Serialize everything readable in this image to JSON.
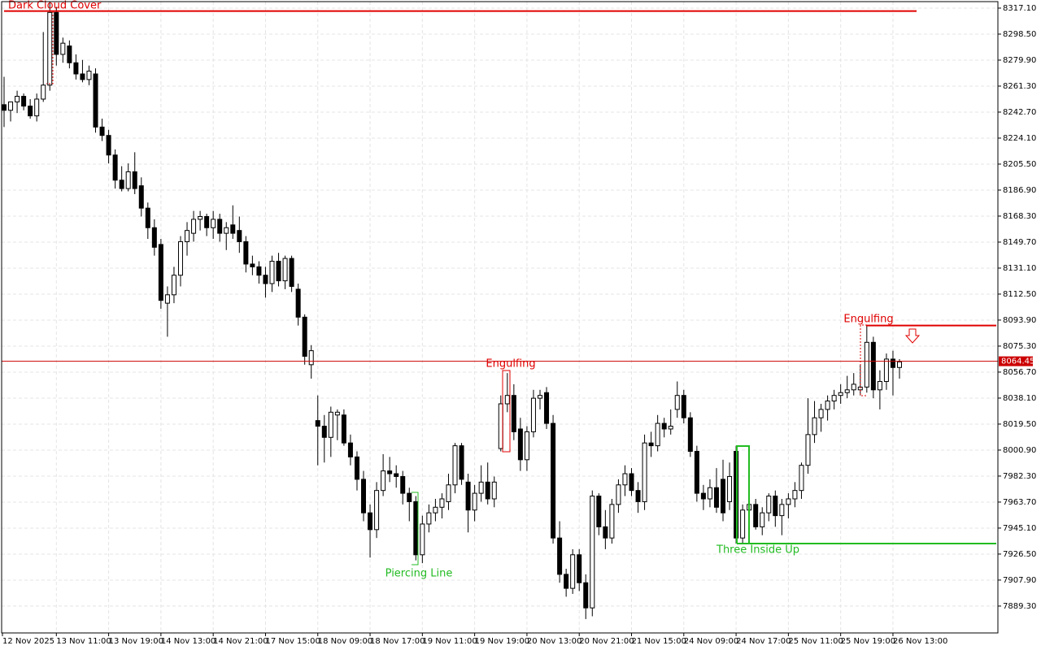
{
  "chart_data": {
    "type": "candlestick",
    "up_color": "#ffffff",
    "down_color": "#000000",
    "outline_color": "#000000",
    "grid": true,
    "ylim": [
      7869.5,
      8322.9
    ],
    "yticks": [
      {
        "value": 8317.1,
        "label": "8317.10"
      },
      {
        "value": 8298.5,
        "label": "8298.50"
      },
      {
        "value": 8279.9,
        "label": "8279.90"
      },
      {
        "value": 8261.3,
        "label": "8261.30"
      },
      {
        "value": 8242.7,
        "label": "8242.70"
      },
      {
        "value": 8224.1,
        "label": "8224.10"
      },
      {
        "value": 8205.5,
        "label": "8205.50"
      },
      {
        "value": 8186.9,
        "label": "8186.90"
      },
      {
        "value": 8168.3,
        "label": "8168.30"
      },
      {
        "value": 8149.7,
        "label": "8149.70"
      },
      {
        "value": 8131.1,
        "label": "8131.10"
      },
      {
        "value": 8112.5,
        "label": "8112.50"
      },
      {
        "value": 8093.9,
        "label": "8093.90"
      },
      {
        "value": 8075.3,
        "label": "8075.30"
      },
      {
        "value": 8056.7,
        "label": "8056.70"
      },
      {
        "value": 8038.1,
        "label": "8038.10"
      },
      {
        "value": 8019.5,
        "label": "8019.50"
      },
      {
        "value": 8000.9,
        "label": "8000.90"
      },
      {
        "value": 7982.3,
        "label": "7982.30"
      },
      {
        "value": 7963.7,
        "label": "7963.70"
      },
      {
        "value": 7945.1,
        "label": "7945.10"
      },
      {
        "value": 7926.5,
        "label": "7926.50"
      },
      {
        "value": 7907.9,
        "label": "7907.90"
      },
      {
        "value": 7889.3,
        "label": "7889.30"
      }
    ],
    "time_labels": [
      "12 Nov 2025",
      "13 Nov 11:00",
      "13 Nov 19:00",
      "14 Nov 13:00",
      "14 Nov 21:00",
      "17 Nov 15:00",
      "18 Nov 09:00",
      "18 Nov 17:00",
      "19 Nov 11:00",
      "19 Nov 19:00",
      "20 Nov 13:00",
      "20 Nov 21:00",
      "21 Nov 15:00",
      "24 Nov 09:00",
      "24 Nov 17:00",
      "25 Nov 11:00",
      "25 Nov 19:00",
      "26 Nov 13:00"
    ],
    "current_price": {
      "value": 8064.45,
      "label": "8064.45",
      "color": "#cc0000"
    },
    "patterns": [
      {
        "label": "Dark Cloud Cover",
        "color": "#e00000",
        "level": 8315
      },
      {
        "label": "Engulfing",
        "color": "#e00000"
      },
      {
        "label": "Piercing Line",
        "color": "#22bb22"
      },
      {
        "label": "Engulfing",
        "color": "#e00000",
        "level": 8090
      },
      {
        "label": "Three Inside Up",
        "color": "#22bb22",
        "level": 7934
      }
    ],
    "candles": [
      [
        8248,
        8268,
        8232,
        8244
      ],
      [
        8244,
        8250,
        8236,
        8250
      ],
      [
        8250,
        8258,
        8242,
        8254
      ],
      [
        8254,
        8256,
        8244,
        8247
      ],
      [
        8247,
        8252,
        8238,
        8240
      ],
      [
        8240,
        8256,
        8236,
        8252
      ],
      [
        8252,
        8300,
        8250,
        8262
      ],
      [
        8262,
        8322,
        8258,
        8314
      ],
      [
        8314,
        8318,
        8276,
        8284
      ],
      [
        8284,
        8296,
        8278,
        8292
      ],
      [
        8290,
        8294,
        8274,
        8278
      ],
      [
        8278,
        8284,
        8266,
        8270
      ],
      [
        8270,
        8280,
        8264,
        8266
      ],
      [
        8266,
        8276,
        8262,
        8272
      ],
      [
        8270,
        8274,
        8228,
        8232
      ],
      [
        8232,
        8238,
        8222,
        8226
      ],
      [
        8226,
        8230,
        8206,
        8212
      ],
      [
        8212,
        8216,
        8188,
        8194
      ],
      [
        8194,
        8204,
        8186,
        8188
      ],
      [
        8188,
        8206,
        8186,
        8200
      ],
      [
        8200,
        8214,
        8184,
        8188
      ],
      [
        8190,
        8196,
        8168,
        8174
      ],
      [
        8174,
        8178,
        8152,
        8160
      ],
      [
        8160,
        8166,
        8140,
        8146
      ],
      [
        8148,
        8152,
        8102,
        8108
      ],
      [
        8106,
        8118,
        8082,
        8112
      ],
      [
        8112,
        8132,
        8106,
        8126
      ],
      [
        8126,
        8154,
        8118,
        8150
      ],
      [
        8150,
        8164,
        8140,
        8158
      ],
      [
        8156,
        8172,
        8150,
        8166
      ],
      [
        8166,
        8172,
        8158,
        8168
      ],
      [
        8168,
        8170,
        8154,
        8160
      ],
      [
        8160,
        8172,
        8152,
        8166
      ],
      [
        8166,
        8170,
        8150,
        8156
      ],
      [
        8156,
        8164,
        8144,
        8160
      ],
      [
        8162,
        8176,
        8152,
        8156
      ],
      [
        8158,
        8168,
        8142,
        8150
      ],
      [
        8150,
        8154,
        8128,
        8134
      ],
      [
        8134,
        8140,
        8126,
        8132
      ],
      [
        8132,
        8136,
        8120,
        8126
      ],
      [
        8126,
        8132,
        8110,
        8120
      ],
      [
        8120,
        8140,
        8114,
        8136
      ],
      [
        8136,
        8142,
        8118,
        8122
      ],
      [
        8122,
        8140,
        8116,
        8138
      ],
      [
        8138,
        8140,
        8114,
        8118
      ],
      [
        8116,
        8120,
        8090,
        8096
      ],
      [
        8096,
        8098,
        8062,
        8068
      ],
      [
        8062,
        8076,
        8052,
        8072
      ],
      [
        8022,
        8040,
        7990,
        8018
      ],
      [
        8018,
        8026,
        7992,
        8010
      ],
      [
        8010,
        8032,
        7996,
        8028
      ],
      [
        8026,
        8030,
        8008,
        8028
      ],
      [
        8026,
        8030,
        8004,
        8006
      ],
      [
        8006,
        8012,
        7990,
        7996
      ],
      [
        7996,
        8000,
        7972,
        7980
      ],
      [
        7980,
        7986,
        7950,
        7956
      ],
      [
        7956,
        7962,
        7924,
        7944
      ],
      [
        7944,
        7978,
        7938,
        7972
      ],
      [
        7972,
        7998,
        7968,
        7986
      ],
      [
        7986,
        7996,
        7978,
        7984
      ],
      [
        7984,
        7990,
        7974,
        7982
      ],
      [
        7982,
        7986,
        7962,
        7970
      ],
      [
        7970,
        7974,
        7950,
        7964
      ],
      [
        7964,
        7968,
        7922,
        7926
      ],
      [
        7926,
        7954,
        7920,
        7948
      ],
      [
        7948,
        7962,
        7942,
        7956
      ],
      [
        7956,
        7966,
        7950,
        7960
      ],
      [
        7960,
        7970,
        7952,
        7966
      ],
      [
        7964,
        7984,
        7958,
        7976
      ],
      [
        7976,
        8006,
        7970,
        8004
      ],
      [
        8004,
        8006,
        7976,
        7980
      ],
      [
        7978,
        7984,
        7942,
        7958
      ],
      [
        7958,
        7976,
        7950,
        7970
      ],
      [
        7970,
        7990,
        7964,
        7978
      ],
      [
        7978,
        7992,
        7962,
        7966
      ],
      [
        7966,
        7982,
        7960,
        7978
      ],
      [
        8002,
        8040,
        8000,
        8034
      ],
      [
        8034,
        8056,
        8028,
        8040
      ],
      [
        8040,
        8048,
        8008,
        8014
      ],
      [
        8016,
        8024,
        7986,
        7994
      ],
      [
        7994,
        8018,
        7986,
        8014
      ],
      [
        8014,
        8044,
        8010,
        8038
      ],
      [
        8038,
        8044,
        8030,
        8040
      ],
      [
        8042,
        8046,
        8016,
        8020
      ],
      [
        8020,
        8026,
        7934,
        7938
      ],
      [
        7938,
        7950,
        7906,
        7912
      ],
      [
        7912,
        7916,
        7896,
        7902
      ],
      [
        7902,
        7930,
        7898,
        7926
      ],
      [
        7926,
        7930,
        7900,
        7906
      ],
      [
        7906,
        7912,
        7880,
        7888
      ],
      [
        7888,
        7972,
        7882,
        7968
      ],
      [
        7968,
        7970,
        7940,
        7946
      ],
      [
        7946,
        7958,
        7930,
        7938
      ],
      [
        7938,
        7966,
        7934,
        7962
      ],
      [
        7962,
        7980,
        7956,
        7976
      ],
      [
        7976,
        7990,
        7968,
        7984
      ],
      [
        7984,
        7988,
        7968,
        7972
      ],
      [
        7972,
        7978,
        7956,
        7964
      ],
      [
        7964,
        8012,
        7958,
        8006
      ],
      [
        8006,
        8014,
        7996,
        8004
      ],
      [
        8004,
        8026,
        8000,
        8020
      ],
      [
        8020,
        8024,
        8010,
        8016
      ],
      [
        8016,
        8030,
        8012,
        8018
      ],
      [
        8030,
        8050,
        8024,
        8040
      ],
      [
        8040,
        8044,
        8020,
        8024
      ],
      [
        8024,
        8028,
        7996,
        8000
      ],
      [
        8000,
        8004,
        7964,
        7970
      ],
      [
        7970,
        7976,
        7958,
        7966
      ],
      [
        7966,
        7980,
        7960,
        7974
      ],
      [
        7974,
        7988,
        7956,
        7960
      ],
      [
        7980,
        7994,
        7950,
        7956
      ],
      [
        7964,
        7992,
        7958,
        7982
      ],
      [
        8000,
        8004,
        7934,
        7938
      ],
      [
        7938,
        7962,
        7934,
        7958
      ],
      [
        7958,
        7970,
        7940,
        7962
      ],
      [
        7962,
        7966,
        7944,
        7946
      ],
      [
        7946,
        7960,
        7940,
        7956
      ],
      [
        7956,
        7970,
        7950,
        7968
      ],
      [
        7968,
        7972,
        7946,
        7954
      ],
      [
        7954,
        7966,
        7940,
        7962
      ],
      [
        7962,
        7970,
        7952,
        7966
      ],
      [
        7966,
        7978,
        7960,
        7972
      ],
      [
        7972,
        7992,
        7966,
        7990
      ],
      [
        7990,
        8038,
        7984,
        8012
      ],
      [
        8012,
        8036,
        8006,
        8024
      ],
      [
        8024,
        8034,
        8014,
        8030
      ],
      [
        8030,
        8040,
        8022,
        8036
      ],
      [
        8036,
        8044,
        8030,
        8040
      ],
      [
        8040,
        8048,
        8034,
        8042
      ],
      [
        8042,
        8054,
        8038,
        8044
      ],
      [
        8044,
        8056,
        8040,
        8048
      ],
      [
        8044,
        8062,
        8040,
        8046
      ],
      [
        8046,
        8090,
        8042,
        8078
      ],
      [
        8078,
        8082,
        8038,
        8044
      ],
      [
        8044,
        8058,
        8030,
        8050
      ],
      [
        8050,
        8070,
        8044,
        8066
      ],
      [
        8066,
        8072,
        8040,
        8060
      ],
      [
        8060,
        8066,
        8052,
        8064
      ]
    ]
  }
}
